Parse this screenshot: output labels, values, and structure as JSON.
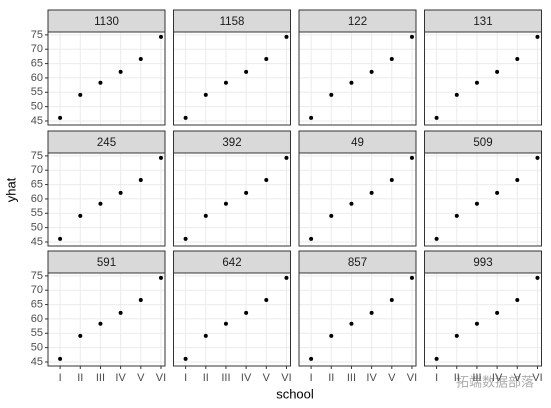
{
  "chart_data": {
    "type": "scatter",
    "x_label": "school",
    "y_label": "yhat",
    "categories": [
      "I",
      "II",
      "III",
      "IV",
      "V",
      "VI"
    ],
    "ylim": [
      43.6,
      76.0
    ],
    "yticks": [
      45,
      50,
      55,
      60,
      65,
      70,
      75
    ],
    "grid": true,
    "color": "#000000",
    "panels": [
      {
        "title": "1130",
        "values": [
          46.1,
          54.1,
          58.3,
          62.1,
          66.6,
          74.3
        ]
      },
      {
        "title": "1158",
        "values": [
          46.1,
          54.1,
          58.3,
          62.1,
          66.6,
          74.3
        ]
      },
      {
        "title": "122",
        "values": [
          46.1,
          54.1,
          58.3,
          62.1,
          66.6,
          74.3
        ]
      },
      {
        "title": "131",
        "values": [
          46.1,
          54.1,
          58.3,
          62.1,
          66.6,
          74.3
        ]
      },
      {
        "title": "245",
        "values": [
          46.1,
          54.1,
          58.3,
          62.1,
          66.6,
          74.3
        ]
      },
      {
        "title": "392",
        "values": [
          46.1,
          54.1,
          58.3,
          62.1,
          66.6,
          74.3
        ]
      },
      {
        "title": "49",
        "values": [
          46.1,
          54.1,
          58.3,
          62.1,
          66.6,
          74.3
        ]
      },
      {
        "title": "509",
        "values": [
          46.1,
          54.1,
          58.3,
          62.1,
          66.6,
          74.3
        ]
      },
      {
        "title": "591",
        "values": [
          46.1,
          54.1,
          58.3,
          62.1,
          66.6,
          74.3
        ]
      },
      {
        "title": "642",
        "values": [
          46.1,
          54.1,
          58.3,
          62.1,
          66.6,
          74.3
        ]
      },
      {
        "title": "857",
        "values": [
          46.1,
          54.1,
          58.3,
          62.1,
          66.6,
          74.3
        ]
      },
      {
        "title": "993",
        "values": [
          46.1,
          54.1,
          58.3,
          62.1,
          66.6,
          74.3
        ]
      }
    ]
  },
  "watermark": "拓端数据部落"
}
